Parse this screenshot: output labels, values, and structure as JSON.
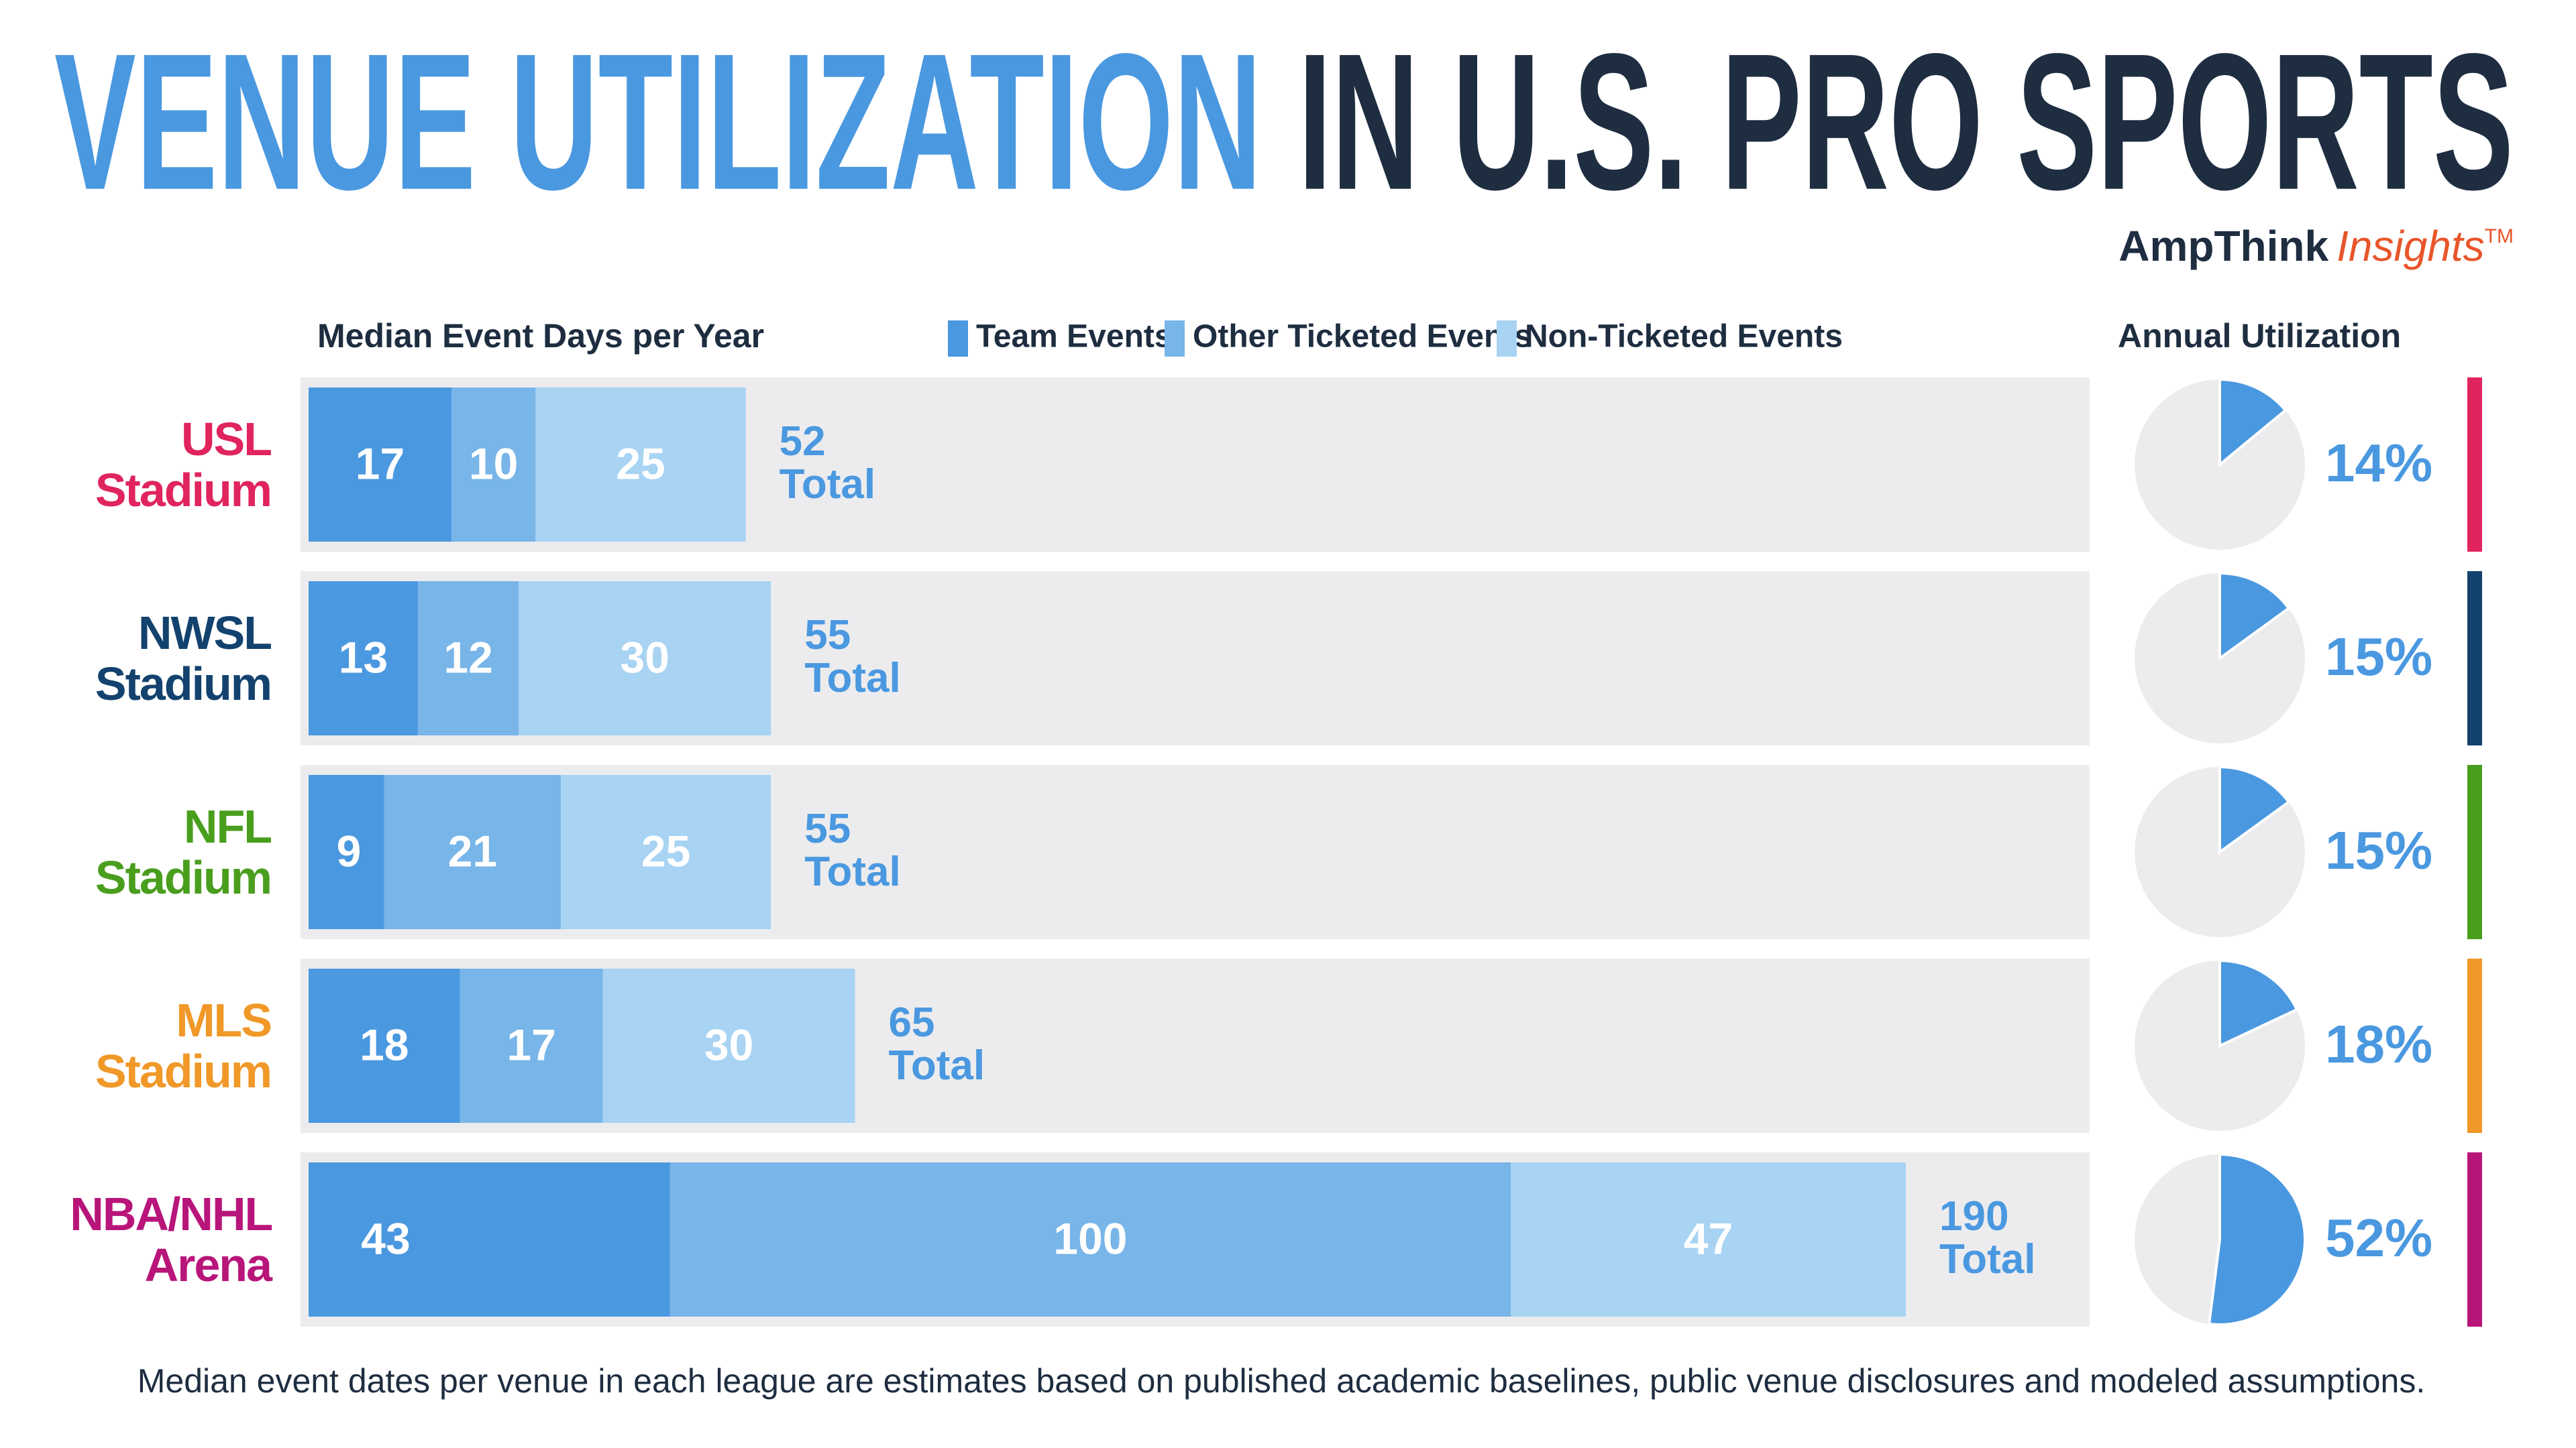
{
  "header": {
    "title_highlight": "VENUE UTILIZATION",
    "title_rest": "IN U.S. PRO SPORTS",
    "brand": "AmpThink",
    "brand_suffix": "Insights",
    "trademark": "TM"
  },
  "chart_data": [
    {
      "type": "bar",
      "orientation": "horizontal",
      "stacked": true,
      "title": "Median Event Days per Year",
      "categories": [
        "USL Stadium",
        "NWSL Stadium",
        "NFL Stadium",
        "MLS Stadium",
        "NBA/NHL Arena"
      ],
      "category_colors": [
        "#e0245e",
        "#13426e",
        "#4a9e1e",
        "#f09828",
        "#b8157a"
      ],
      "series": [
        {
          "name": "Team Events",
          "color": "#4a98e0",
          "values": [
            17,
            13,
            9,
            18,
            43
          ]
        },
        {
          "name": "Other Ticketed Events",
          "color": "#78b5e8",
          "values": [
            10,
            12,
            21,
            17,
            100
          ]
        },
        {
          "name": "Non-Ticketed Events",
          "color": "#a8d3f3",
          "values": [
            25,
            30,
            25,
            30,
            47
          ]
        }
      ],
      "totals": [
        52,
        55,
        55,
        65,
        190
      ],
      "total_word": "Total",
      "background": "#ececee"
    },
    {
      "type": "pie",
      "title": "Annual Utilization",
      "values": [
        14,
        15,
        15,
        18,
        52
      ],
      "value_labels": [
        "14%",
        "15%",
        "15%",
        "18%",
        "52%"
      ],
      "color": "#4a98e0",
      "rest_color": "#ececee"
    }
  ],
  "footnote": "Median event dates per venue in each league are estimates based on published academic baselines, public venue disclosures and modeled assumptions."
}
